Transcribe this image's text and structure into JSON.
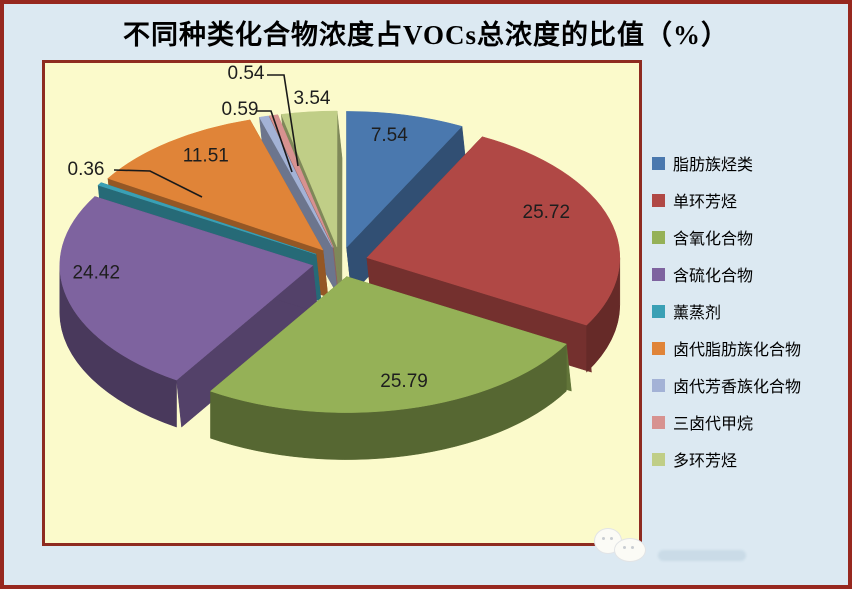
{
  "chart": {
    "title": "不同种类化合物浓度占VOCs总浓度的比值（%）"
  },
  "chart_data": {
    "type": "pie",
    "style": "3d-exploded-pie",
    "title": "不同种类化合物浓度占VOCs总浓度的比值（%）",
    "unit": "%",
    "direction": "clockwise",
    "start_angle_deg": 0,
    "legend_position": "right",
    "categories": [
      "脂肪族烃类",
      "单环芳烃",
      "含氧化合物",
      "含硫化合物",
      "薰蒸剂",
      "卤代脂肪族化合物",
      "卤代芳香族化合物",
      "三卤代甲烷",
      "多环芳烃"
    ],
    "values": [
      7.54,
      25.72,
      25.79,
      24.42,
      0.36,
      11.51,
      0.59,
      0.54,
      3.54
    ],
    "data_labels": [
      "7.54",
      "25.72",
      "25.79",
      "24.42",
      "0.36",
      "11.51",
      "0.59",
      "0.54",
      "3.54"
    ],
    "colors": [
      "#4A78AE",
      "#B04845",
      "#95B157",
      "#7E639F",
      "#3AA0B5",
      "#E08438",
      "#A3B2D6",
      "#D79290",
      "#C0CE87"
    ],
    "plot_area_color": "#FBFACB",
    "plot_border_color": "#8E2B20",
    "background_color": "#DCE9F2",
    "outer_border_color": "#97281F",
    "label_text_color": "#1E1E1E"
  }
}
